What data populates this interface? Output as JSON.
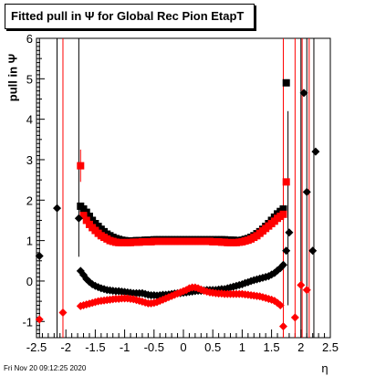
{
  "title": "Fitted pull in Ψ  for Global Rec Pion EtapT",
  "footer_stamp": "Fri Nov 20 09:12:25 2020",
  "chart_data": {
    "type": "scatter",
    "title": "Fitted pull in Ψ  for Global Rec Pion EtapT",
    "xlabel": "η",
    "ylabel": "pull in Ψ",
    "xlim": [
      -2.5,
      2.5
    ],
    "ylim": [
      -1.4,
      6.0
    ],
    "xticks": [
      "-2.5",
      "-2",
      "-1.5",
      "-1",
      "-0.5",
      "0",
      "0.5",
      "1",
      "1.5",
      "2",
      "2.5"
    ],
    "yticks": [
      "-1",
      "0",
      "1",
      "2",
      "3",
      "4",
      "5",
      "6"
    ],
    "grid": false,
    "series": [
      {
        "color": "#000000",
        "marker": "square",
        "label_role": "sigma-black",
        "x": [
          -1.75,
          -1.7,
          -1.65,
          -1.6,
          -1.55,
          -1.5,
          -1.45,
          -1.4,
          -1.35,
          -1.3,
          -1.25,
          -1.2,
          -1.15,
          -1.1,
          -1.05,
          -1.0,
          -0.95,
          -0.9,
          -0.85,
          -0.8,
          -0.75,
          -0.7,
          -0.65,
          -0.6,
          -0.55,
          -0.5,
          -0.45,
          -0.4,
          -0.35,
          -0.3,
          -0.25,
          -0.2,
          -0.15,
          -0.1,
          -0.05,
          0.0,
          0.05,
          0.1,
          0.15,
          0.2,
          0.25,
          0.3,
          0.35,
          0.4,
          0.45,
          0.5,
          0.55,
          0.6,
          0.65,
          0.7,
          0.75,
          0.8,
          0.85,
          0.9,
          0.95,
          1.0,
          1.05,
          1.1,
          1.15,
          1.2,
          1.25,
          1.3,
          1.35,
          1.4,
          1.45,
          1.5,
          1.55,
          1.6,
          1.65,
          1.7,
          1.75
        ],
        "y": [
          1.85,
          1.78,
          1.7,
          1.6,
          1.5,
          1.42,
          1.35,
          1.28,
          1.22,
          1.16,
          1.12,
          1.08,
          1.05,
          1.03,
          1.01,
          1.0,
          0.99,
          0.99,
          0.99,
          1.0,
          1.0,
          1.0,
          1.01,
          1.01,
          1.01,
          1.02,
          1.02,
          1.02,
          1.02,
          1.02,
          1.02,
          1.02,
          1.02,
          1.02,
          1.02,
          1.02,
          1.02,
          1.02,
          1.02,
          1.02,
          1.02,
          1.02,
          1.02,
          1.02,
          1.02,
          1.02,
          1.02,
          1.02,
          1.02,
          1.02,
          1.01,
          1.01,
          1.01,
          1.0,
          1.0,
          1.01,
          1.03,
          1.05,
          1.08,
          1.12,
          1.17,
          1.22,
          1.28,
          1.35,
          1.42,
          1.5,
          1.58,
          1.66,
          1.72,
          1.78,
          4.9
        ]
      },
      {
        "color": "#ff0000",
        "marker": "square",
        "label_role": "sigma-red",
        "x": [
          -1.75,
          -1.7,
          -1.65,
          -1.6,
          -1.55,
          -1.5,
          -1.45,
          -1.4,
          -1.35,
          -1.3,
          -1.25,
          -1.2,
          -1.15,
          -1.1,
          -1.05,
          -1.0,
          -0.95,
          -0.9,
          -0.85,
          -0.8,
          -0.75,
          -0.7,
          -0.65,
          -0.6,
          -0.55,
          -0.5,
          -0.45,
          -0.4,
          -0.35,
          -0.3,
          -0.25,
          -0.2,
          -0.15,
          -0.1,
          -0.05,
          0.0,
          0.05,
          0.1,
          0.15,
          0.2,
          0.25,
          0.3,
          0.35,
          0.4,
          0.45,
          0.5,
          0.55,
          0.6,
          0.65,
          0.7,
          0.75,
          0.8,
          0.85,
          0.9,
          0.95,
          1.0,
          1.05,
          1.1,
          1.15,
          1.2,
          1.25,
          1.3,
          1.35,
          1.4,
          1.45,
          1.5,
          1.55,
          1.6,
          1.65,
          1.7,
          1.75
        ],
        "y": [
          2.85,
          1.62,
          1.5,
          1.4,
          1.32,
          1.25,
          1.18,
          1.12,
          1.08,
          1.04,
          1.0,
          0.98,
          0.96,
          0.95,
          0.95,
          0.95,
          0.95,
          0.95,
          0.96,
          0.96,
          0.96,
          0.97,
          0.97,
          0.97,
          0.97,
          0.98,
          0.98,
          0.98,
          0.98,
          0.98,
          0.98,
          0.98,
          0.98,
          0.98,
          0.98,
          0.98,
          0.98,
          0.98,
          0.98,
          0.98,
          0.98,
          0.98,
          0.98,
          0.98,
          0.98,
          0.97,
          0.97,
          0.97,
          0.96,
          0.96,
          0.95,
          0.95,
          0.95,
          0.95,
          0.96,
          0.97,
          0.99,
          1.01,
          1.04,
          1.08,
          1.12,
          1.18,
          1.24,
          1.3,
          1.36,
          1.42,
          1.48,
          1.55,
          1.6,
          1.65,
          2.45
        ]
      },
      {
        "color": "#000000",
        "marker": "diamond",
        "label_role": "mean-black",
        "x": [
          -2.45,
          -2.15,
          -1.78,
          -1.75,
          -1.7,
          -1.65,
          -1.6,
          -1.55,
          -1.5,
          -1.45,
          -1.4,
          -1.35,
          -1.3,
          -1.25,
          -1.2,
          -1.15,
          -1.1,
          -1.05,
          -1.0,
          -0.95,
          -0.9,
          -0.85,
          -0.8,
          -0.75,
          -0.7,
          -0.65,
          -0.6,
          -0.55,
          -0.5,
          -0.45,
          -0.4,
          -0.35,
          -0.3,
          -0.25,
          -0.2,
          -0.15,
          -0.1,
          -0.05,
          0.0,
          0.05,
          0.1,
          0.15,
          0.2,
          0.25,
          0.3,
          0.35,
          0.4,
          0.45,
          0.5,
          0.55,
          0.6,
          0.65,
          0.7,
          0.75,
          0.8,
          0.85,
          0.9,
          0.95,
          1.0,
          1.05,
          1.1,
          1.15,
          1.2,
          1.25,
          1.3,
          1.35,
          1.4,
          1.45,
          1.5,
          1.55,
          1.6,
          1.65,
          1.7,
          1.75,
          1.8,
          2.05,
          2.1,
          2.2,
          2.25
        ],
        "y": [
          0.62,
          1.8,
          1.55,
          0.25,
          0.15,
          0.05,
          -0.02,
          -0.08,
          -0.12,
          -0.15,
          -0.18,
          -0.2,
          -0.22,
          -0.23,
          -0.24,
          -0.25,
          -0.25,
          -0.26,
          -0.27,
          -0.28,
          -0.29,
          -0.3,
          -0.3,
          -0.3,
          -0.3,
          -0.32,
          -0.34,
          -0.35,
          -0.35,
          -0.36,
          -0.35,
          -0.34,
          -0.34,
          -0.33,
          -0.32,
          -0.31,
          -0.3,
          -0.3,
          -0.29,
          -0.28,
          -0.27,
          -0.26,
          -0.25,
          -0.24,
          -0.24,
          -0.23,
          -0.22,
          -0.22,
          -0.22,
          -0.22,
          -0.21,
          -0.2,
          -0.2,
          -0.18,
          -0.16,
          -0.14,
          -0.12,
          -0.1,
          -0.08,
          -0.05,
          -0.03,
          0.0,
          0.02,
          0.04,
          0.06,
          0.08,
          0.1,
          0.12,
          0.16,
          0.2,
          0.26,
          0.32,
          0.4,
          0.75,
          1.2,
          4.65,
          2.2,
          0.75,
          3.2
        ]
      },
      {
        "color": "#ff0000",
        "marker": "diamond",
        "label_role": "mean-red",
        "x": [
          -2.45,
          -2.05,
          -1.75,
          -1.7,
          -1.65,
          -1.6,
          -1.55,
          -1.5,
          -1.45,
          -1.4,
          -1.35,
          -1.3,
          -1.25,
          -1.2,
          -1.15,
          -1.1,
          -1.05,
          -1.0,
          -0.95,
          -0.9,
          -0.85,
          -0.8,
          -0.75,
          -0.7,
          -0.65,
          -0.6,
          -0.55,
          -0.5,
          -0.45,
          -0.4,
          -0.35,
          -0.3,
          -0.25,
          -0.2,
          -0.15,
          -0.1,
          -0.05,
          0.0,
          0.05,
          0.1,
          0.15,
          0.2,
          0.25,
          0.3,
          0.35,
          0.4,
          0.45,
          0.5,
          0.55,
          0.6,
          0.65,
          0.7,
          0.75,
          0.8,
          0.85,
          0.9,
          0.95,
          1.0,
          1.05,
          1.1,
          1.15,
          1.2,
          1.25,
          1.3,
          1.35,
          1.4,
          1.45,
          1.5,
          1.55,
          1.6,
          1.65,
          1.7,
          1.9,
          2.0,
          2.1
        ],
        "y": [
          -0.95,
          -0.78,
          -0.62,
          -0.6,
          -0.58,
          -0.56,
          -0.54,
          -0.52,
          -0.5,
          -0.49,
          -0.48,
          -0.47,
          -0.46,
          -0.45,
          -0.44,
          -0.44,
          -0.43,
          -0.43,
          -0.43,
          -0.44,
          -0.45,
          -0.47,
          -0.49,
          -0.51,
          -0.53,
          -0.55,
          -0.55,
          -0.54,
          -0.52,
          -0.49,
          -0.46,
          -0.43,
          -0.4,
          -0.37,
          -0.34,
          -0.31,
          -0.28,
          -0.25,
          -0.22,
          -0.18,
          -0.16,
          -0.16,
          -0.18,
          -0.21,
          -0.24,
          -0.26,
          -0.28,
          -0.29,
          -0.3,
          -0.31,
          -0.31,
          -0.32,
          -0.32,
          -0.32,
          -0.32,
          -0.32,
          -0.32,
          -0.32,
          -0.33,
          -0.34,
          -0.35,
          -0.36,
          -0.37,
          -0.38,
          -0.4,
          -0.42,
          -0.44,
          -0.46,
          -0.49,
          -0.54,
          -0.6,
          -1.12,
          -0.9,
          -0.1,
          -0.22
        ]
      }
    ],
    "error_bars": [
      {
        "color": "#000000",
        "x": -2.45,
        "lo": -1.4,
        "hi": 6.0
      },
      {
        "color": "#000000",
        "x": -2.15,
        "lo": -1.4,
        "hi": 6.0
      },
      {
        "color": "#ff0000",
        "x": -2.05,
        "lo": -1.4,
        "hi": 6.0
      },
      {
        "color": "#000000",
        "x": -1.78,
        "lo": 0.6,
        "hi": 6.0
      },
      {
        "color": "#ff0000",
        "x": -1.75,
        "lo": 2.45,
        "hi": 3.25
      },
      {
        "color": "#000000",
        "x": 1.78,
        "lo": -0.6,
        "hi": 4.2
      },
      {
        "color": "#ff0000",
        "x": 1.7,
        "lo": -1.4,
        "hi": 6.0
      },
      {
        "color": "#ff0000",
        "x": 1.9,
        "lo": -1.4,
        "hi": 6.0
      },
      {
        "color": "#000000",
        "x": 2.0,
        "lo": -1.4,
        "hi": 6.0
      },
      {
        "color": "#ff0000",
        "x": 2.02,
        "lo": -1.4,
        "hi": 6.0
      },
      {
        "color": "#000000",
        "x": 2.1,
        "lo": -1.4,
        "hi": 6.0
      },
      {
        "color": "#ff0000",
        "x": 2.14,
        "lo": -1.4,
        "hi": 6.0
      },
      {
        "color": "#000000",
        "x": 2.22,
        "lo": -1.4,
        "hi": 6.0
      }
    ]
  }
}
